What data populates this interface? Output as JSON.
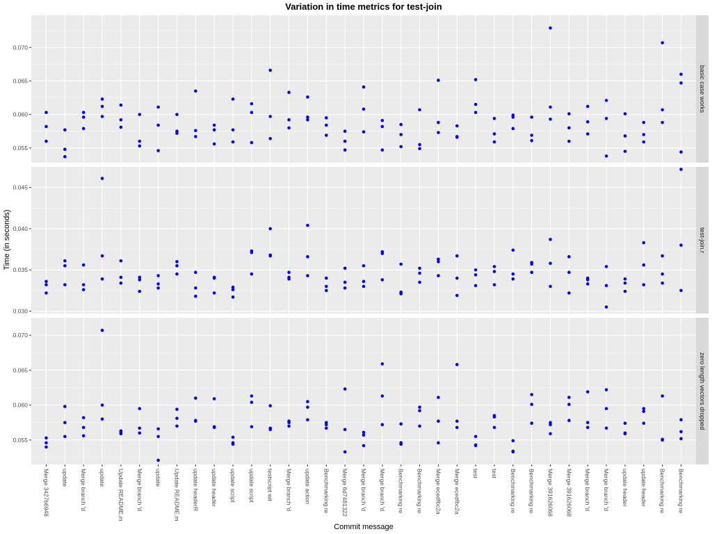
{
  "chart_data": {
    "type": "scatter",
    "title": "Variation in time metrics for test-join",
    "xlabel": "Commit message",
    "ylabel": "Time (in seconds)",
    "point_color": "#0000ff",
    "panel_background": "#ebebeb",
    "strip_background": "#d9d9d9",
    "grid": true,
    "categories": [
      "Merge 3427b6948",
      "update",
      "Merge branch 'd",
      "update",
      "Update README.m",
      "Merge branch 'd",
      "update",
      "Update README.m",
      "update headerR",
      "update header",
      "update script",
      "update script",
      "testscript wit",
      "Merge branch 'd",
      "update action",
      "Benchmarking re",
      "Merge 6d7481322",
      "Merge branch 'd",
      "Merge branch 'd",
      "Benchmarking re",
      "Benchmarking re",
      "Merge ecedfbc2a",
      "Merge ecedfbc2a",
      "test",
      "test",
      "Benchmarking re",
      "Benchmarking re",
      "Merge 391626068",
      "Merge 391626068",
      "Merge branch 'd",
      "Merge branch 'd",
      "update header",
      "update header",
      "Benchmarking re",
      "Benchmarking re"
    ],
    "facets": [
      {
        "label": "basic case works",
        "ylim": [
          0.0528,
          0.0748
        ],
        "yticks": [
          0.055,
          0.06,
          0.065,
          0.07
        ],
        "ytick_labels": [
          "0.055",
          "0.060",
          "0.065",
          "0.070"
        ],
        "values": [
          [
            0.0603,
            0.0582,
            0.056
          ],
          [
            0.0577,
            0.0548,
            0.0537
          ],
          [
            0.0603,
            0.0596,
            0.0579
          ],
          [
            0.0623,
            0.0612,
            0.0597
          ],
          [
            0.0614,
            0.0592,
            0.0581
          ],
          [
            0.06,
            0.056,
            0.0553
          ],
          [
            0.0611,
            0.0584,
            0.0546
          ],
          [
            0.06,
            0.0575,
            0.0572
          ],
          [
            0.0635,
            0.0576,
            0.0567
          ],
          [
            0.0584,
            0.0577,
            0.0556
          ],
          [
            0.0623,
            0.0577,
            0.0559
          ],
          [
            0.0616,
            0.0603,
            0.0558
          ],
          [
            0.0666,
            0.0597,
            0.0564
          ],
          [
            0.0633,
            0.0592,
            0.058
          ],
          [
            0.0626,
            0.0596,
            0.0592
          ],
          [
            0.0595,
            0.0584,
            0.0569
          ],
          [
            0.0575,
            0.056,
            0.0547
          ],
          [
            0.0641,
            0.0608,
            0.0574
          ],
          [
            0.0591,
            0.0582,
            0.0547
          ],
          [
            0.0585,
            0.057,
            0.0552
          ],
          [
            0.0607,
            0.0555,
            0.0549
          ],
          [
            0.0651,
            0.0588,
            0.0573
          ],
          [
            0.0583,
            0.0567,
            0.0566
          ],
          [
            0.0652,
            0.0615,
            0.0603
          ],
          [
            0.0594,
            0.0571,
            0.0559
          ],
          [
            0.0599,
            0.0596,
            0.0579
          ],
          [
            0.0596,
            0.0569,
            0.0561
          ],
          [
            0.0729,
            0.0611,
            0.0593
          ],
          [
            0.0601,
            0.058,
            0.056
          ],
          [
            0.0612,
            0.0589,
            0.0571
          ],
          [
            0.0621,
            0.0594,
            0.0538
          ],
          [
            0.0601,
            0.0568,
            0.0545
          ],
          [
            0.0588,
            0.057,
            0.0559
          ],
          [
            0.0707,
            0.0607,
            0.0588
          ],
          [
            0.066,
            0.0647,
            0.0544
          ]
        ]
      },
      {
        "label": "test-join.r",
        "ylim": [
          0.0297,
          0.0475
        ],
        "yticks": [
          0.03,
          0.035,
          0.04,
          0.045
        ],
        "ytick_labels": [
          "0.030",
          "0.035",
          "0.040",
          "0.045"
        ],
        "values": [
          [
            0.0336,
            0.0332,
            0.0322
          ],
          [
            0.0361,
            0.0355,
            0.0332
          ],
          [
            0.0356,
            0.0332,
            0.0326
          ],
          [
            0.0461,
            0.0367,
            0.0339
          ],
          [
            0.0361,
            0.0341,
            0.0334
          ],
          [
            0.0341,
            0.0338,
            0.0324
          ],
          [
            0.0343,
            0.0333,
            0.0328
          ],
          [
            0.036,
            0.0355,
            0.0345
          ],
          [
            0.0347,
            0.0328,
            0.0318
          ],
          [
            0.0341,
            0.034,
            0.0322
          ],
          [
            0.0329,
            0.0326,
            0.0317
          ],
          [
            0.0373,
            0.0371,
            0.0345
          ],
          [
            0.04,
            0.0368,
            0.0367
          ],
          [
            0.0347,
            0.0341,
            0.0339
          ],
          [
            0.0404,
            0.0366,
            0.0343
          ],
          [
            0.034,
            0.033,
            0.0325
          ],
          [
            0.0352,
            0.0335,
            0.0328
          ],
          [
            0.0355,
            0.0336,
            0.033
          ],
          [
            0.0372,
            0.037,
            0.0338
          ],
          [
            0.0357,
            0.0323,
            0.0321
          ],
          [
            0.0352,
            0.0346,
            0.0335
          ],
          [
            0.0363,
            0.036,
            0.0343
          ],
          [
            0.0367,
            0.034,
            0.0319
          ],
          [
            0.035,
            0.0344,
            0.0331
          ],
          [
            0.0354,
            0.0348,
            0.0332
          ],
          [
            0.0374,
            0.0345,
            0.0339
          ],
          [
            0.0359,
            0.0357,
            0.0347
          ],
          [
            0.0387,
            0.0358,
            0.033
          ],
          [
            0.0366,
            0.0347,
            0.0322
          ],
          [
            0.034,
            0.0338,
            0.0333
          ],
          [
            0.0354,
            0.0331,
            0.0305
          ],
          [
            0.0339,
            0.0334,
            0.0324
          ],
          [
            0.0383,
            0.0356,
            0.0332
          ],
          [
            0.0367,
            0.0345,
            0.0334
          ],
          [
            0.0472,
            0.038,
            0.0325
          ]
        ]
      },
      {
        "label": "zero length vectors dropped",
        "ylim": [
          0.0515,
          0.0725
        ],
        "yticks": [
          0.055,
          0.06,
          0.065,
          0.07
        ],
        "ytick_labels": [
          "0.055",
          "0.060",
          "0.065",
          "0.070"
        ],
        "values": [
          [
            0.0553,
            0.0546,
            0.054
          ],
          [
            0.0598,
            0.0575,
            0.0555
          ],
          [
            0.0582,
            0.0568,
            0.0556
          ],
          [
            0.0707,
            0.06,
            0.058
          ],
          [
            0.0563,
            0.0561,
            0.0559
          ],
          [
            0.0595,
            0.0567,
            0.056
          ],
          [
            0.0566,
            0.0555,
            0.0521
          ],
          [
            0.0594,
            0.0581,
            0.057
          ],
          [
            0.061,
            0.0578,
            0.0577
          ],
          [
            0.0609,
            0.0569,
            0.0568
          ],
          [
            0.0554,
            0.0546,
            0.0544
          ],
          [
            0.0613,
            0.0604,
            0.0569
          ],
          [
            0.0599,
            0.0567,
            0.0565
          ],
          [
            0.0577,
            0.0575,
            0.057
          ],
          [
            0.0605,
            0.0597,
            0.0579
          ],
          [
            0.0575,
            0.0572,
            0.0567
          ],
          [
            0.0623,
            0.0565,
            0.0533
          ],
          [
            0.0561,
            0.0557,
            0.0542
          ],
          [
            0.0659,
            0.0613,
            0.0572
          ],
          [
            0.0573,
            0.0546,
            0.0544
          ],
          [
            0.0597,
            0.0592,
            0.057
          ],
          [
            0.0611,
            0.0577,
            0.0546
          ],
          [
            0.0658,
            0.0577,
            0.0568
          ],
          [
            0.0555,
            0.0543,
            0.0542
          ],
          [
            0.0585,
            0.0583,
            0.0568
          ],
          [
            0.0549,
            0.0534,
            0.0533
          ],
          [
            0.0615,
            0.0601,
            0.0574
          ],
          [
            0.0575,
            0.0572,
            0.0559
          ],
          [
            0.0611,
            0.0601,
            0.0578
          ],
          [
            0.0619,
            0.0575,
            0.0568
          ],
          [
            0.0622,
            0.0595,
            0.0567
          ],
          [
            0.0574,
            0.056,
            0.0559
          ],
          [
            0.0595,
            0.0591,
            0.0574
          ],
          [
            0.0613,
            0.0551,
            0.055
          ],
          [
            0.0579,
            0.0562,
            0.0552
          ]
        ]
      }
    ]
  }
}
